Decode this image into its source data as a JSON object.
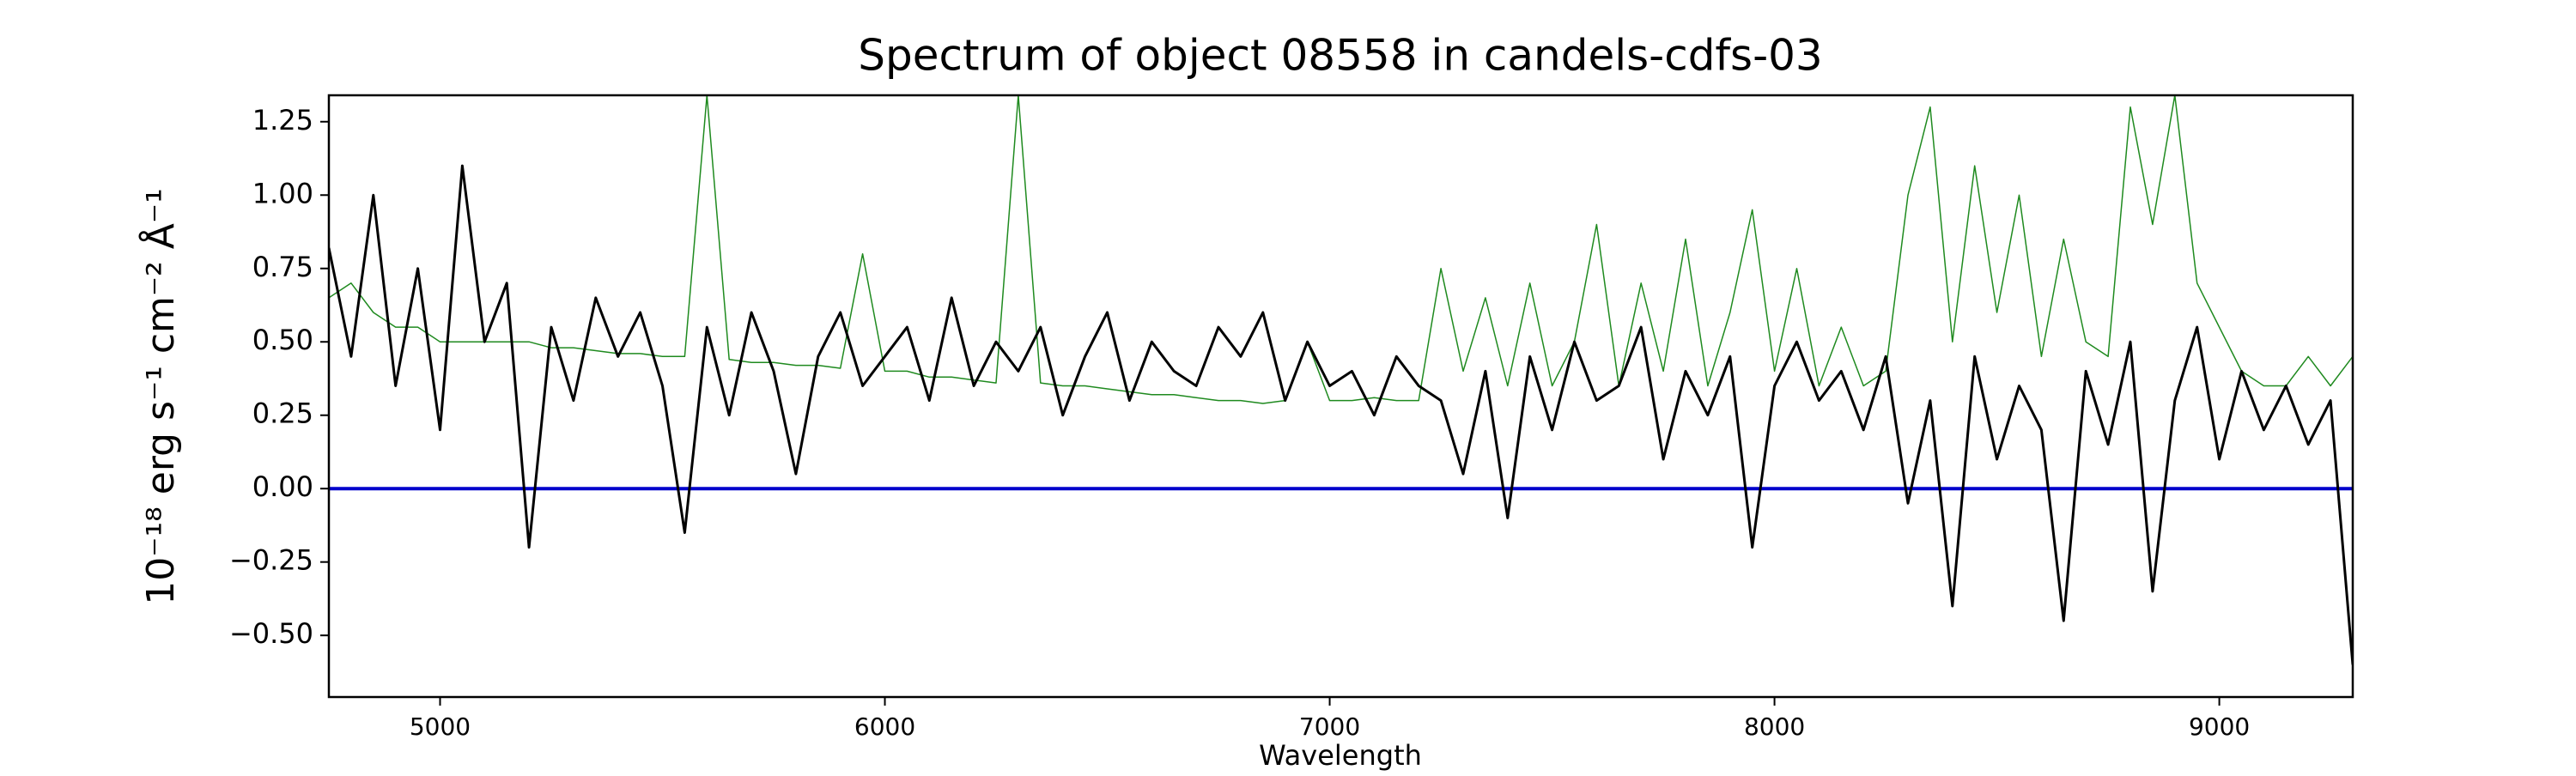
{
  "chart_data": {
    "type": "line",
    "title": "Spectrum of object 08558 in candels-cdfs-03",
    "x_label": "Wavelength",
    "y_label": "10⁻¹⁸ erg s⁻¹ cm⁻² Å⁻¹",
    "x": [
      4750,
      4800,
      4850,
      4900,
      4950,
      5000,
      5050,
      5100,
      5150,
      5200,
      5250,
      5300,
      5350,
      5400,
      5450,
      5500,
      5550,
      5600,
      5650,
      5700,
      5750,
      5800,
      5850,
      5900,
      5950,
      6000,
      6050,
      6100,
      6150,
      6200,
      6250,
      6300,
      6350,
      6400,
      6450,
      6500,
      6550,
      6600,
      6650,
      6700,
      6750,
      6800,
      6850,
      6900,
      6950,
      7000,
      7050,
      7100,
      7150,
      7200,
      7250,
      7300,
      7350,
      7400,
      7450,
      7500,
      7550,
      7600,
      7650,
      7700,
      7750,
      7800,
      7850,
      7900,
      7950,
      8000,
      8050,
      8100,
      8150,
      8200,
      8250,
      8300,
      8350,
      8400,
      8450,
      8500,
      8550,
      8600,
      8650,
      8700,
      8750,
      8800,
      8850,
      8900,
      8950,
      9000,
      9050,
      9100,
      9150,
      9200,
      9250,
      9300
    ],
    "series": [
      {
        "color": "#000000",
        "width": 3,
        "values": [
          0.82,
          0.45,
          1.0,
          0.35,
          0.75,
          0.2,
          1.1,
          0.5,
          0.7,
          -0.2,
          0.55,
          0.3,
          0.65,
          0.45,
          0.6,
          0.35,
          -0.15,
          0.55,
          0.25,
          0.6,
          0.4,
          0.05,
          0.45,
          0.6,
          0.35,
          0.45,
          0.55,
          0.3,
          0.65,
          0.35,
          0.5,
          0.4,
          0.55,
          0.25,
          0.45,
          0.6,
          0.3,
          0.5,
          0.4,
          0.35,
          0.55,
          0.45,
          0.6,
          0.3,
          0.5,
          0.35,
          0.4,
          0.25,
          0.45,
          0.35,
          0.3,
          0.05,
          0.4,
          -0.1,
          0.45,
          0.2,
          0.5,
          0.3,
          0.35,
          0.55,
          0.1,
          0.4,
          0.25,
          0.45,
          -0.2,
          0.35,
          0.5,
          0.3,
          0.4,
          0.2,
          0.45,
          -0.05,
          0.3,
          -0.4,
          0.45,
          0.1,
          0.35,
          0.2,
          -0.45,
          0.4,
          0.15,
          0.5,
          -0.35,
          0.3,
          0.55,
          0.1,
          0.4,
          0.2,
          0.35,
          0.15,
          0.3,
          -0.6
        ]
      },
      {
        "color": "#1f8a1f",
        "width": 1.5,
        "values": [
          0.65,
          0.7,
          0.6,
          0.55,
          0.55,
          0.5,
          0.5,
          0.5,
          0.5,
          0.5,
          0.48,
          0.48,
          0.47,
          0.46,
          0.46,
          0.45,
          0.45,
          1.34,
          0.44,
          0.43,
          0.43,
          0.42,
          0.42,
          0.41,
          0.8,
          0.4,
          0.4,
          0.38,
          0.38,
          0.37,
          0.36,
          1.34,
          0.36,
          0.35,
          0.35,
          0.34,
          0.33,
          0.32,
          0.32,
          0.31,
          0.3,
          0.3,
          0.29,
          0.3,
          0.5,
          0.3,
          0.3,
          0.31,
          0.3,
          0.3,
          0.75,
          0.4,
          0.65,
          0.35,
          0.7,
          0.35,
          0.5,
          0.9,
          0.35,
          0.7,
          0.4,
          0.85,
          0.35,
          0.6,
          0.95,
          0.4,
          0.75,
          0.35,
          0.55,
          0.35,
          0.4,
          1.0,
          1.3,
          0.5,
          1.1,
          0.6,
          1.0,
          0.45,
          0.85,
          0.5,
          0.45,
          1.3,
          0.9,
          1.34,
          0.7,
          0.55,
          0.4,
          0.35,
          0.35,
          0.45,
          0.35,
          0.45
        ]
      }
    ],
    "reference_line": {
      "y": 0,
      "color": "#0000cc"
    },
    "xlim": [
      4750,
      9300
    ],
    "ylim": [
      -0.71,
      1.34
    ],
    "xticks": [
      5000,
      6000,
      7000,
      8000,
      9000
    ],
    "yticks": [
      {
        "value": -0.5,
        "label": "−0.50"
      },
      {
        "value": -0.25,
        "label": "−0.25"
      },
      {
        "value": 0,
        "label": "0.00"
      },
      0.25,
      {
        "value": 0.5,
        "label": "0.50"
      },
      0.75,
      {
        "value": 1,
        "label": "1.00"
      },
      1.25
    ],
    "grid": false
  }
}
